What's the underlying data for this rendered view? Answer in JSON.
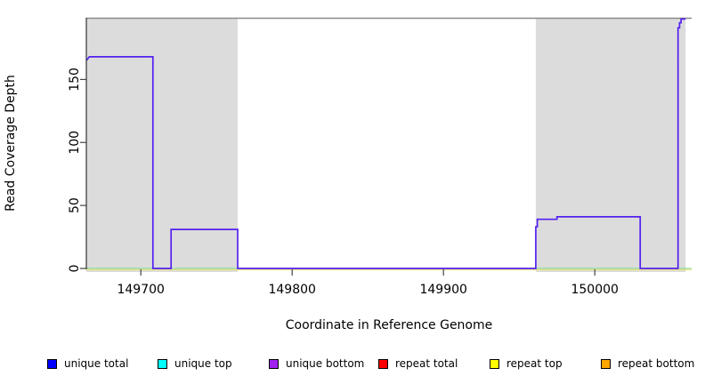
{
  "chart_data": {
    "type": "line",
    "title": "",
    "xlabel": "Coordinate in Reference Genome",
    "ylabel": "Read Coverage Depth",
    "xlim": [
      149664,
      150064
    ],
    "ylim": [
      0,
      199
    ],
    "xticks": [
      149700,
      149800,
      149900,
      150000
    ],
    "yticks": [
      0,
      50,
      100,
      150
    ],
    "grid": false,
    "legend_position": "bottom",
    "shade_color": "#DCDCDC",
    "shaded_regions": [
      {
        "x_start": 149664,
        "x_end": 149764
      },
      {
        "x_start": 149961,
        "x_end": 150060
      }
    ],
    "series": [
      {
        "name": "unique bottom coverage line",
        "color": "#5420F0",
        "points": [
          [
            149664,
            165
          ],
          [
            149666,
            168
          ],
          [
            149708,
            168
          ],
          [
            149708,
            0
          ],
          [
            149720,
            0
          ],
          [
            149720,
            31
          ],
          [
            149764,
            31
          ],
          [
            149764,
            0
          ],
          [
            149961,
            0
          ],
          [
            149961,
            33
          ],
          [
            149962,
            33
          ],
          [
            149962,
            39
          ],
          [
            149975,
            39
          ],
          [
            149975,
            41
          ],
          [
            150030,
            41
          ],
          [
            150030,
            0
          ],
          [
            150055,
            0
          ],
          [
            150055,
            191
          ],
          [
            150056,
            191
          ],
          [
            150056,
            195
          ],
          [
            150057,
            195
          ],
          [
            150057,
            198
          ],
          [
            150060,
            198
          ]
        ]
      },
      {
        "name": "overlapping baseline at zero (blended top/bottom strand lines)",
        "color": "#8FDC8F",
        "points": [
          [
            149664,
            0
          ],
          [
            150064,
            0
          ]
        ]
      },
      {
        "name": "repeat baseline at zero",
        "color": "#EDE275",
        "points": [
          [
            149664,
            0
          ],
          [
            150064,
            0
          ]
        ]
      }
    ]
  },
  "legend": {
    "items": [
      {
        "label": "unique total",
        "color": "#0000FF"
      },
      {
        "label": "unique top",
        "color": "#00FFFF"
      },
      {
        "label": "unique bottom",
        "color": "#A020F0"
      },
      {
        "label": "repeat total",
        "color": "#FF0000"
      },
      {
        "label": "repeat top",
        "color": "#FFFF00"
      },
      {
        "label": "repeat bottom",
        "color": "#FFA500"
      }
    ]
  }
}
